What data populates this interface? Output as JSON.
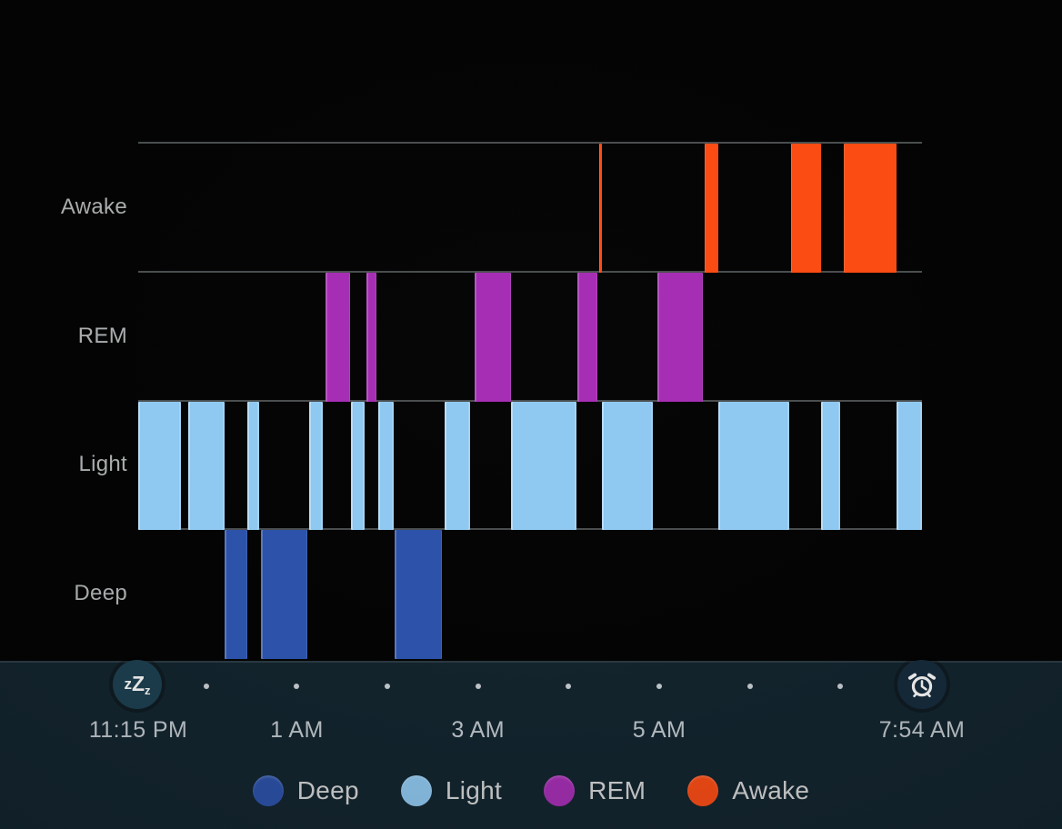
{
  "chart_data": {
    "type": "bar",
    "subtype": "sleep-stage-hypnogram",
    "rows": [
      {
        "id": "awake",
        "label": "Awake",
        "color": "#fb4c14"
      },
      {
        "id": "rem",
        "label": "REM",
        "color": "#a62eb4"
      },
      {
        "id": "light",
        "label": "Light",
        "color": "#8fc8f0"
      },
      {
        "id": "deep",
        "label": "Deep",
        "color": "#2c52a9"
      }
    ],
    "x_axis": {
      "start_label": "11:15 PM",
      "end_label": "7:54 AM",
      "total_minutes": 519,
      "tick_labels": [
        {
          "label": "11:15 PM",
          "minute": 0
        },
        {
          "label": "1 AM",
          "minute": 105
        },
        {
          "label": "3 AM",
          "minute": 225
        },
        {
          "label": "5 AM",
          "minute": 345
        },
        {
          "label": "7:54 AM",
          "minute": 519
        }
      ],
      "hour_dot_minutes": [
        45,
        105,
        165,
        225,
        285,
        345,
        405,
        465
      ]
    },
    "grid": {
      "line_color": "#4a4e4f",
      "background": "#020202"
    },
    "segments": [
      {
        "stage": "light",
        "start_min": 0,
        "end_min": 28
      },
      {
        "stage": "light",
        "start_min": 33,
        "end_min": 57
      },
      {
        "stage": "deep",
        "start_min": 57,
        "end_min": 72
      },
      {
        "stage": "light",
        "start_min": 72,
        "end_min": 80
      },
      {
        "stage": "deep",
        "start_min": 81,
        "end_min": 112
      },
      {
        "stage": "light",
        "start_min": 113,
        "end_min": 122
      },
      {
        "stage": "rem",
        "start_min": 124,
        "end_min": 140
      },
      {
        "stage": "light",
        "start_min": 141,
        "end_min": 150
      },
      {
        "stage": "rem",
        "start_min": 151,
        "end_min": 158
      },
      {
        "stage": "light",
        "start_min": 159,
        "end_min": 169
      },
      {
        "stage": "deep",
        "start_min": 170,
        "end_min": 201
      },
      {
        "stage": "light",
        "start_min": 203,
        "end_min": 220
      },
      {
        "stage": "rem",
        "start_min": 223,
        "end_min": 247
      },
      {
        "stage": "light",
        "start_min": 247,
        "end_min": 290
      },
      {
        "stage": "rem",
        "start_min": 291,
        "end_min": 304
      },
      {
        "stage": "awake",
        "start_min": 305,
        "end_min": 307
      },
      {
        "stage": "light",
        "start_min": 307,
        "end_min": 341
      },
      {
        "stage": "rem",
        "start_min": 344,
        "end_min": 374
      },
      {
        "stage": "awake",
        "start_min": 375,
        "end_min": 384
      },
      {
        "stage": "light",
        "start_min": 384,
        "end_min": 431
      },
      {
        "stage": "awake",
        "start_min": 432,
        "end_min": 452
      },
      {
        "stage": "light",
        "start_min": 452,
        "end_min": 465
      },
      {
        "stage": "awake",
        "start_min": 467,
        "end_min": 502
      },
      {
        "stage": "light",
        "start_min": 502,
        "end_min": 519
      }
    ],
    "legend": [
      {
        "label": "Deep",
        "color": "#2c52a9"
      },
      {
        "label": "Light",
        "color": "#8fc8f0"
      },
      {
        "label": "REM",
        "color": "#a62eb4"
      },
      {
        "label": "Awake",
        "color": "#fb4c14"
      }
    ],
    "legend_position": "bottom"
  },
  "panel": {
    "background": "#12242e",
    "icons": {
      "sleep_start": "zzz-sleep-icon",
      "wake_end": "alarm-clock-icon",
      "zzz_letters": [
        "z",
        "Z",
        "z"
      ]
    }
  }
}
